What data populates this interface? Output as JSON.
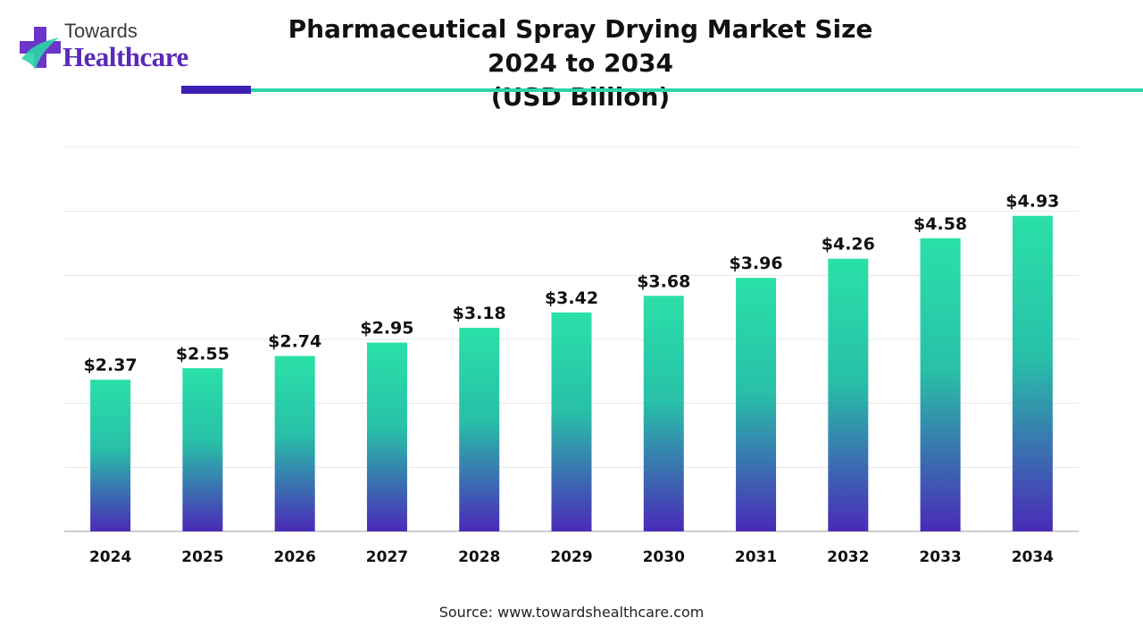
{
  "brand": {
    "line1": "Towards",
    "line2": "Healthcare"
  },
  "chart_data": {
    "type": "bar",
    "title": "Pharmaceutical Spray Drying Market Size 2024 to 2034",
    "subtitle": "(USD Billion)",
    "categories": [
      "2024",
      "2025",
      "2026",
      "2027",
      "2028",
      "2029",
      "2030",
      "2031",
      "2032",
      "2033",
      "2034"
    ],
    "values": [
      2.37,
      2.55,
      2.74,
      2.95,
      3.18,
      3.42,
      3.68,
      3.96,
      4.26,
      4.58,
      4.93
    ],
    "value_labels": [
      "$2.37",
      "$2.55",
      "$2.74",
      "$2.95",
      "$3.18",
      "$3.42",
      "$3.68",
      "$3.96",
      "$4.26",
      "$4.58",
      "$4.93"
    ],
    "xlabel": "",
    "ylabel": "",
    "ylim": [
      0,
      6
    ],
    "grid": true,
    "legend": "none",
    "colors": {
      "bar_top": "#2ae0a8",
      "bar_bottom": "#4a2ab8",
      "accent_dark": "#3f1fb5",
      "accent_teal": "#2ad6a8"
    }
  },
  "source": "Source: www.towardshealthcare.com"
}
